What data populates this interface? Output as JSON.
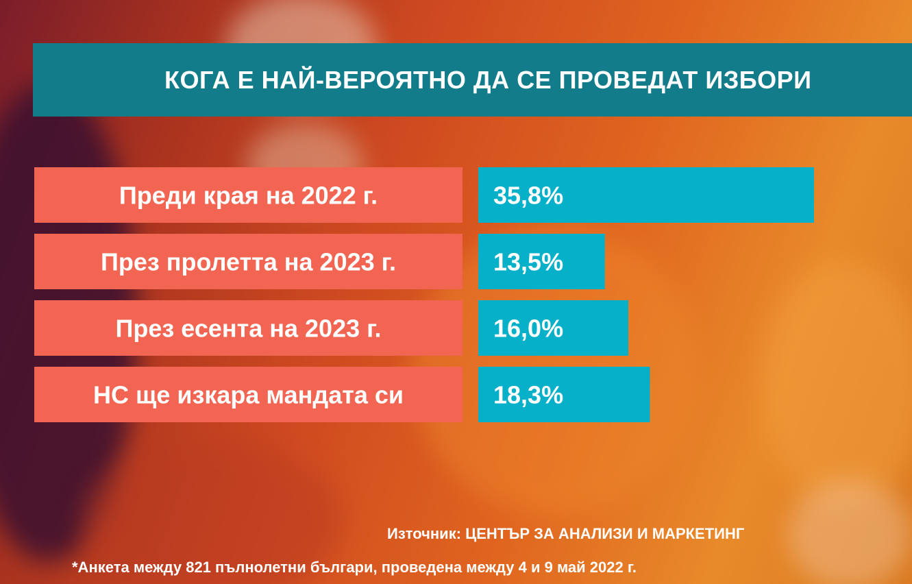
{
  "colors": {
    "title_band": "#137c8a",
    "category_box": "#f26552",
    "bar": "#06b0c8",
    "text": "#ffffff"
  },
  "chart_data": {
    "type": "bar",
    "orientation": "horizontal",
    "title": "КОГА Е НАЙ-ВЕРОЯТНО ДА СЕ ПРОВЕДАТ ИЗБОРИ",
    "categories": [
      "Преди края на 2022 г.",
      "През пролетта на 2023 г.",
      "През есента на 2023 г.",
      "НС ще изкара мандата си"
    ],
    "values": [
      35.8,
      13.5,
      16.0,
      18.3
    ],
    "value_labels": [
      "35,8%",
      "13,5%",
      "16,0%",
      "18,3%"
    ],
    "unit": "%",
    "grid": false,
    "legend": "none"
  },
  "source": "Източник: ЦЕНТЪР ЗА АНАЛИЗИ И МАРКЕТИНГ",
  "footnote": "*Анкета между 821 пълнолетни българи, проведена между 4 и 9 май 2022 г."
}
